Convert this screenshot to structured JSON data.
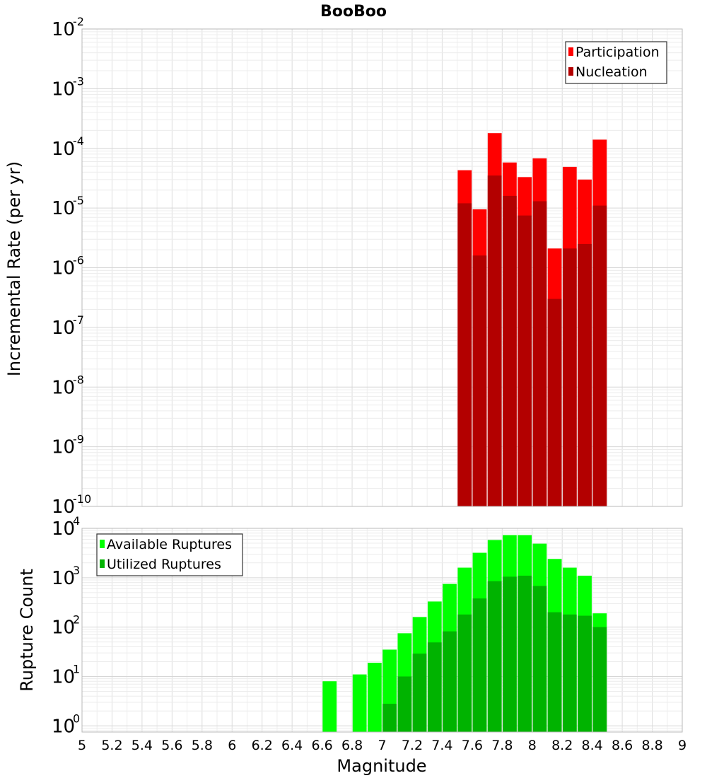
{
  "chart_data": [
    {
      "type": "bar",
      "title": "BooBoo",
      "xlabel": "",
      "ylabel": "Incremental Rate (per yr)",
      "yscale": "log",
      "ylim": [
        1e-10,
        0.01
      ],
      "xlim": [
        5,
        9
      ],
      "y_ticks": [
        {
          "base": "10",
          "exp": "-10"
        },
        {
          "base": "10",
          "exp": "-9"
        },
        {
          "base": "10",
          "exp": "-8"
        },
        {
          "base": "10",
          "exp": "-7"
        },
        {
          "base": "10",
          "exp": "-6"
        },
        {
          "base": "10",
          "exp": "-5"
        },
        {
          "base": "10",
          "exp": "-4"
        },
        {
          "base": "10",
          "exp": "-3"
        },
        {
          "base": "10",
          "exp": "-2"
        }
      ],
      "legend_position": "top-right",
      "grid": true,
      "overlay": true,
      "x": [
        7.55,
        7.65,
        7.75,
        7.85,
        7.95,
        8.05,
        8.15,
        8.25,
        8.35,
        8.45
      ],
      "series": [
        {
          "name": "Participation",
          "color": "#ff0000",
          "values": [
            4.3e-05,
            9.5e-06,
            0.00018,
            5.8e-05,
            3.3e-05,
            6.8e-05,
            2.1e-06,
            4.9e-05,
            3e-05,
            0.00014
          ]
        },
        {
          "name": "Nucleation",
          "color": "#b30000",
          "values": [
            1.2e-05,
            1.6e-06,
            3.5e-05,
            1.6e-05,
            7.5e-06,
            1.3e-05,
            3e-07,
            2.1e-06,
            2.5e-06,
            1.1e-05
          ]
        }
      ]
    },
    {
      "type": "bar",
      "title": "",
      "xlabel": "Magnitude",
      "ylabel": "Rupture Count",
      "yscale": "log",
      "ylim": [
        0.75,
        10000
      ],
      "xlim": [
        5,
        9
      ],
      "x_tick_labels": [
        "5",
        "5.2",
        "5.4",
        "5.6",
        "5.8",
        "6",
        "6.2",
        "6.4",
        "6.6",
        "6.8",
        "7",
        "7.2",
        "7.4",
        "7.6",
        "7.8",
        "8",
        "8.2",
        "8.4",
        "8.6",
        "8.8",
        "9"
      ],
      "y_ticks": [
        {
          "base": "10",
          "exp": "0"
        },
        {
          "base": "10",
          "exp": "1"
        },
        {
          "base": "10",
          "exp": "2"
        },
        {
          "base": "10",
          "exp": "3"
        },
        {
          "base": "10",
          "exp": "4"
        }
      ],
      "legend_position": "top-left",
      "grid": true,
      "overlay": true,
      "x": [
        6.65,
        6.75,
        6.85,
        6.95,
        7.05,
        7.15,
        7.25,
        7.35,
        7.45,
        7.55,
        7.65,
        7.75,
        7.85,
        7.95,
        8.05,
        8.15,
        8.25,
        8.35,
        8.45
      ],
      "series": [
        {
          "name": "Available Ruptures",
          "color": "#00ff00",
          "values": [
            8,
            0,
            11,
            19,
            35,
            75,
            160,
            330,
            750,
            1600,
            3200,
            5800,
            7300,
            7300,
            4900,
            2400,
            1600,
            1100,
            190
          ]
        },
        {
          "name": "Utilized Ruptures",
          "color": "#00b300",
          "values": [
            0,
            0,
            0,
            0,
            2.8,
            10,
            29,
            49,
            82,
            180,
            380,
            850,
            1050,
            1100,
            680,
            200,
            180,
            170,
            100
          ]
        }
      ]
    }
  ]
}
